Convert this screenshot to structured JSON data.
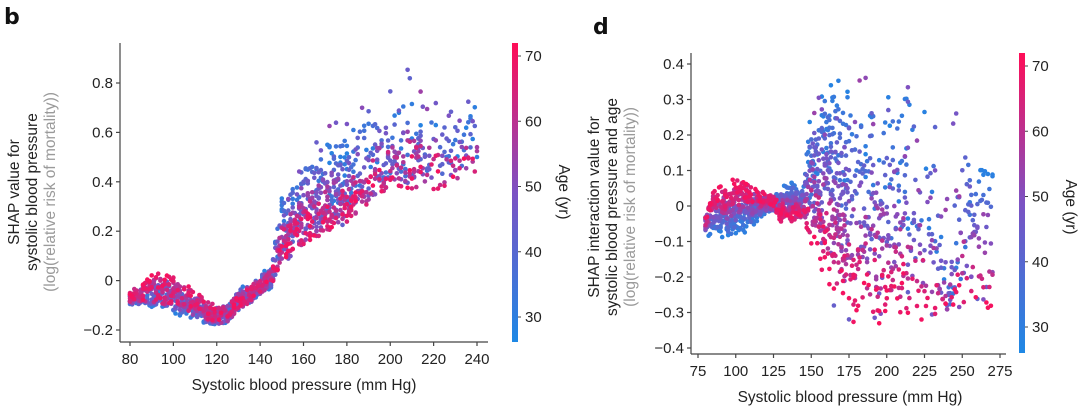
{
  "chart_data": [
    {
      "type": "scatter",
      "panel_label": "b",
      "title": "",
      "xlabel": "Systolic blood pressure (mm Hg)",
      "ylabel_lines": [
        "SHAP value for",
        "systolic blood pressure"
      ],
      "ylabel_sub": "(log(relative risk of mortality))",
      "xlim": [
        75,
        245
      ],
      "ylim": [
        -0.25,
        0.97
      ],
      "xticks": [
        80,
        100,
        120,
        140,
        160,
        180,
        200,
        220,
        240
      ],
      "xtick_labels": [
        "80",
        "100",
        "120",
        "140",
        "160",
        "180",
        "200",
        "220",
        "240"
      ],
      "yticks": [
        -0.2,
        0,
        0.2,
        0.4,
        0.6,
        0.8
      ],
      "ytick_labels": [
        "−0.2",
        "0",
        "0.2",
        "0.4",
        "0.6",
        "0.8"
      ],
      "grid": false,
      "colorbar": {
        "label": "Age (yr)",
        "range": [
          26,
          72
        ],
        "ticks": [
          30,
          40,
          50,
          60,
          70
        ],
        "tick_labels": [
          "30",
          "40",
          "50",
          "60",
          "70"
        ],
        "color_low": "#1E88E5",
        "color_mid": "#7C52C3",
        "color_high": "#FF0D57"
      },
      "series_envelope": {
        "description": "Dense scatter; for each BP bin: [bp, young_lo, young_hi, old_lo, old_hi, sparse_max]",
        "bins": [
          [
            80,
            -0.11,
            -0.06,
            -0.09,
            -0.04,
            -0.04
          ],
          [
            85,
            -0.1,
            -0.05,
            -0.08,
            -0.01,
            -0.01
          ],
          [
            90,
            -0.11,
            -0.03,
            -0.08,
            0.05,
            0.05
          ],
          [
            95,
            -0.12,
            -0.03,
            -0.09,
            0.03,
            0.03
          ],
          [
            100,
            -0.13,
            -0.05,
            -0.09,
            0.04,
            0.04
          ],
          [
            105,
            -0.15,
            -0.07,
            -0.11,
            -0.01,
            -0.01
          ],
          [
            110,
            -0.16,
            -0.09,
            -0.13,
            -0.03,
            -0.03
          ],
          [
            115,
            -0.18,
            -0.12,
            -0.15,
            -0.07,
            -0.07
          ],
          [
            120,
            -0.18,
            -0.12,
            -0.17,
            -0.1,
            -0.1
          ],
          [
            125,
            -0.17,
            -0.1,
            -0.17,
            -0.1,
            -0.1
          ],
          [
            130,
            -0.12,
            -0.03,
            -0.11,
            -0.06,
            -0.03
          ],
          [
            135,
            -0.1,
            -0.01,
            -0.09,
            -0.03,
            -0.01
          ],
          [
            140,
            -0.06,
            0.03,
            -0.05,
            0.0,
            0.03
          ],
          [
            145,
            -0.03,
            0.06,
            -0.02,
            0.03,
            0.06
          ],
          [
            150,
            0.1,
            0.35,
            0.07,
            0.18,
            0.36
          ],
          [
            155,
            0.15,
            0.42,
            0.1,
            0.22,
            0.44
          ],
          [
            160,
            0.19,
            0.5,
            0.13,
            0.26,
            0.55
          ],
          [
            165,
            0.22,
            0.55,
            0.16,
            0.28,
            0.58
          ],
          [
            170,
            0.25,
            0.58,
            0.18,
            0.3,
            0.62
          ],
          [
            175,
            0.28,
            0.6,
            0.2,
            0.32,
            0.65
          ],
          [
            180,
            0.3,
            0.62,
            0.22,
            0.34,
            0.66
          ],
          [
            185,
            0.33,
            0.66,
            0.26,
            0.38,
            0.7
          ],
          [
            190,
            0.36,
            0.7,
            0.3,
            0.42,
            0.78
          ],
          [
            195,
            0.38,
            0.72,
            0.35,
            0.46,
            0.78
          ],
          [
            200,
            0.4,
            0.72,
            0.36,
            0.5,
            0.8
          ],
          [
            210,
            0.42,
            0.75,
            0.36,
            0.52,
            0.9
          ],
          [
            220,
            0.44,
            0.72,
            0.36,
            0.5,
            0.79
          ],
          [
            230,
            0.45,
            0.7,
            0.38,
            0.5,
            0.74
          ],
          [
            240,
            0.44,
            0.72,
            0.44,
            0.5,
            0.72
          ]
        ]
      }
    },
    {
      "type": "scatter",
      "panel_label": "d",
      "title": "",
      "xlabel": "Systolic blood pressure (mm Hg)",
      "ylabel_lines": [
        "SHAP interaction value for",
        "systolic blood pressure and age"
      ],
      "ylabel_sub": "(log(relative risk of mortality))",
      "xlim": [
        70,
        280
      ],
      "ylim": [
        -0.43,
        0.43
      ],
      "xticks": [
        75,
        100,
        125,
        150,
        175,
        200,
        225,
        250,
        275
      ],
      "xtick_labels": [
        "75",
        "100",
        "125",
        "150",
        "175",
        "200",
        "225",
        "250",
        "275"
      ],
      "yticks": [
        -0.4,
        -0.3,
        -0.2,
        -0.1,
        0,
        0.1,
        0.2,
        0.3,
        0.4
      ],
      "ytick_labels": [
        "−0.4",
        "−0.3",
        "−0.2",
        "−0.1",
        "0",
        "0.1",
        "0.2",
        "0.3",
        "0.4"
      ],
      "grid": false,
      "colorbar": {
        "label": "Age (yr)",
        "range": [
          26,
          72
        ],
        "ticks": [
          30,
          40,
          50,
          60,
          70
        ],
        "tick_labels": [
          "30",
          "40",
          "50",
          "60",
          "70"
        ],
        "color_low": "#1E88E5",
        "color_mid": "#7C52C3",
        "color_high": "#FF0D57"
      },
      "series_envelope": {
        "description": "For each BP bin: [bp, young_lo, young_hi, old_lo, old_hi, sparse_min, sparse_max]",
        "bins": [
          [
            80,
            -0.09,
            -0.03,
            -0.05,
            -0.02,
            -0.09,
            -0.02
          ],
          [
            85,
            -0.09,
            -0.03,
            0.02,
            0.06,
            -0.09,
            0.06
          ],
          [
            90,
            -0.09,
            -0.03,
            0.0,
            0.06,
            -0.09,
            0.06
          ],
          [
            95,
            -0.1,
            -0.03,
            0.01,
            0.07,
            -0.1,
            0.07
          ],
          [
            100,
            -0.09,
            -0.02,
            0.02,
            0.09,
            -0.1,
            0.09
          ],
          [
            105,
            -0.08,
            -0.02,
            0.02,
            0.08,
            -0.08,
            0.08
          ],
          [
            110,
            -0.07,
            -0.01,
            0.01,
            0.07,
            -0.07,
            0.07
          ],
          [
            115,
            -0.05,
            0.0,
            0.01,
            0.06,
            -0.05,
            0.06
          ],
          [
            120,
            -0.03,
            0.01,
            0.0,
            0.04,
            -0.03,
            0.04
          ],
          [
            125,
            -0.02,
            0.02,
            0.0,
            0.03,
            -0.02,
            0.03
          ],
          [
            130,
            0.0,
            0.06,
            -0.05,
            0.0,
            -0.05,
            0.06
          ],
          [
            135,
            0.01,
            0.07,
            -0.05,
            -0.01,
            -0.05,
            0.07
          ],
          [
            140,
            0.01,
            0.08,
            -0.05,
            -0.01,
            -0.05,
            0.08
          ],
          [
            145,
            0.01,
            0.08,
            -0.05,
            -0.01,
            -0.05,
            0.08
          ],
          [
            150,
            0.05,
            0.33,
            -0.12,
            -0.02,
            -0.12,
            0.34
          ],
          [
            155,
            0.1,
            0.36,
            -0.18,
            -0.05,
            -0.2,
            0.36
          ],
          [
            160,
            0.15,
            0.37,
            -0.24,
            -0.08,
            -0.26,
            0.37
          ],
          [
            165,
            0.12,
            0.38,
            -0.28,
            -0.12,
            -0.3,
            0.38
          ],
          [
            170,
            0.08,
            0.38,
            -0.33,
            -0.18,
            -0.35,
            0.38
          ],
          [
            175,
            0.05,
            0.38,
            -0.34,
            -0.2,
            -0.35,
            0.38
          ],
          [
            180,
            0.02,
            0.37,
            -0.34,
            -0.2,
            -0.35,
            0.39
          ],
          [
            190,
            0.0,
            0.36,
            -0.34,
            -0.18,
            -0.35,
            0.38
          ],
          [
            200,
            -0.05,
            0.32,
            -0.33,
            -0.18,
            -0.36,
            0.34
          ],
          [
            210,
            -0.04,
            0.36,
            -0.32,
            -0.2,
            -0.33,
            0.38
          ],
          [
            220,
            -0.1,
            0.28,
            -0.33,
            -0.22,
            -0.33,
            0.29
          ],
          [
            230,
            -0.1,
            0.28,
            -0.34,
            -0.22,
            -0.35,
            0.28
          ],
          [
            240,
            -0.28,
            -0.25,
            -0.3,
            -0.27,
            -0.3,
            0.26
          ],
          [
            250,
            -0.26,
            0.27,
            -0.29,
            -0.2,
            -0.29,
            0.27
          ],
          [
            260,
            0.1,
            0.12,
            -0.28,
            -0.26,
            -0.28,
            0.12
          ],
          [
            270,
            0.09,
            0.1,
            -0.3,
            -0.28,
            -0.3,
            0.1
          ]
        ]
      }
    }
  ]
}
